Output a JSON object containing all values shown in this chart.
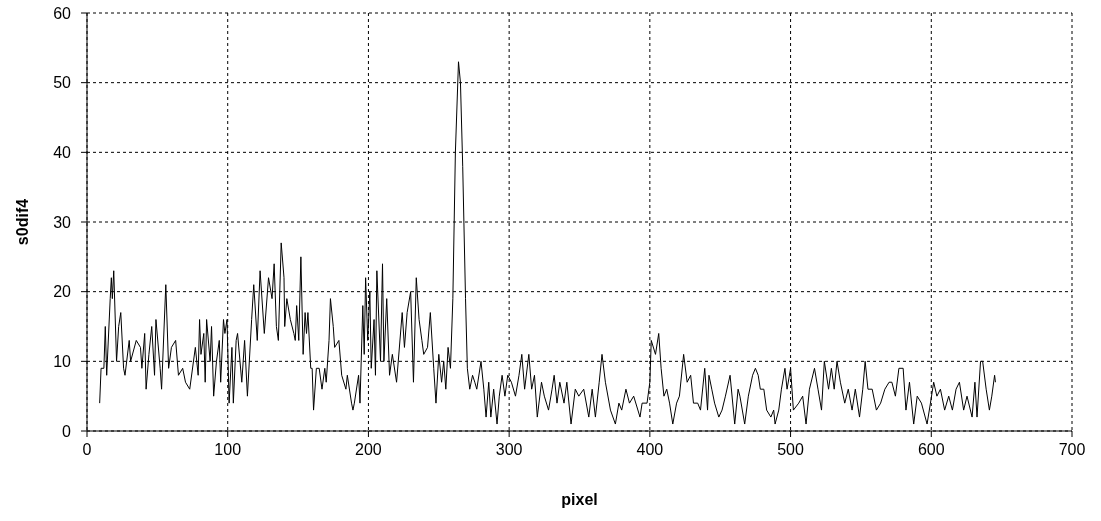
{
  "chart_data": {
    "type": "line",
    "xlabel": "pixel",
    "ylabel": "s0dif4",
    "xlim": [
      0,
      700
    ],
    "xticks": [
      0,
      100,
      200,
      300,
      400,
      500,
      600,
      700
    ],
    "ylim": [
      0,
      60
    ],
    "yticks": [
      0,
      10,
      20,
      30,
      40,
      50,
      60
    ],
    "grid": true,
    "marker": "none",
    "line_style": "solid",
    "series": [
      {
        "color": "#000000",
        "x": [
          9,
          10,
          12,
          13,
          14,
          16.5,
          17.3,
          18,
          19,
          21,
          22.5,
          24,
          26,
          27,
          30,
          31,
          35,
          38,
          39,
          41,
          42,
          44,
          46,
          48,
          49,
          52,
          53,
          56,
          58,
          60,
          63,
          65,
          68,
          70,
          73,
          77,
          79,
          80,
          81,
          83,
          84,
          85,
          87.5,
          88.5,
          90,
          92,
          94,
          95,
          97,
          98,
          99.5,
          101,
          103,
          104,
          106,
          107,
          110,
          112,
          114,
          117,
          118.5,
          121,
          123,
          126,
          129,
          131.5,
          133,
          134.6,
          136,
          138,
          140,
          140.5,
          142,
          144.5,
          147,
          148,
          149,
          150.5,
          152,
          153.6,
          155,
          156,
          157,
          159,
          160,
          161,
          163,
          165,
          167,
          169,
          170,
          172,
          173,
          175,
          176,
          179,
          181,
          184,
          185,
          188,
          189,
          190,
          193,
          194,
          196,
          197,
          198,
          199.5,
          201,
          202,
          204,
          205,
          206,
          208.6,
          210,
          211,
          213,
          215,
          217,
          220,
          224,
          225.6,
          227.5,
          230,
          232,
          234,
          236,
          238,
          239.3,
          242,
          244,
          246.4,
          248,
          250,
          252,
          253.5,
          255,
          256.6,
          258.3,
          260,
          261.8,
          264,
          265.4,
          267,
          269,
          270.3,
          272,
          274,
          275.6,
          277,
          280,
          282,
          283.6,
          285.5,
          287,
          289,
          291.4,
          293,
          295,
          297,
          299,
          301.6,
          304.5,
          307,
          309,
          311,
          314,
          316,
          318,
          320,
          323,
          325,
          328,
          330.5,
          332,
          334,
          336,
          339,
          341,
          344,
          347,
          349.5,
          353,
          356.6,
          359,
          361.3,
          364,
          366,
          368.4,
          372,
          375.5,
          378,
          380,
          383,
          385.5,
          388.5,
          393,
          394.5,
          398,
          400,
          401,
          404,
          406.3,
          408,
          410,
          412,
          414,
          416.3,
          419,
          421,
          424,
          426.5,
          429,
          431,
          434,
          436,
          439,
          441,
          442,
          444,
          446,
          449,
          451.3,
          453.7,
          457,
          460.3,
          462.7,
          464,
          467.4,
          470,
          473,
          475,
          477,
          478.5,
          481,
          483,
          486,
          488,
          489,
          491.6,
          493.5,
          496,
          497.5,
          500,
          502,
          505.8,
          508.6,
          511,
          513.4,
          517,
          519.5,
          522,
          524,
          527,
          529,
          531,
          533,
          535.4,
          538.5,
          541,
          543.7,
          546,
          549,
          551.3,
          553,
          555,
          558,
          561,
          564,
          567,
          570,
          572,
          574.5,
          577,
          580,
          582,
          584.5,
          587.5,
          590,
          593,
          597,
          599.4,
          601.7,
          604,
          606.5,
          609.5,
          612.4,
          615,
          617.6,
          620,
          623,
          625.4,
          629,
          631,
          632.5,
          635,
          636.5,
          639,
          641.3,
          643,
          645,
          645.6
        ],
        "values": [
          4,
          9,
          9,
          15,
          8,
          19,
          22,
          19,
          23,
          10,
          15,
          17,
          9,
          8,
          13,
          10,
          13,
          12,
          9,
          14,
          6,
          11,
          15,
          8,
          16,
          9,
          6,
          21,
          9,
          12,
          13,
          8,
          9,
          7,
          6,
          12,
          8,
          16,
          11,
          14,
          7,
          16,
          10,
          15,
          5,
          10,
          13,
          7,
          16,
          14,
          16,
          4,
          12,
          4,
          13,
          14,
          7,
          13,
          5,
          16,
          21,
          13,
          23,
          14,
          22,
          19,
          24,
          15,
          13,
          27,
          22,
          15,
          19,
          16,
          14,
          13,
          18,
          13,
          25,
          11,
          17,
          14,
          17,
          9,
          9,
          3,
          9,
          9,
          6,
          9,
          7,
          13,
          19,
          15,
          12,
          13,
          8,
          6,
          8,
          4,
          3,
          4,
          8,
          4,
          18,
          11,
          22,
          13,
          20,
          9,
          16,
          8,
          23,
          10,
          24,
          10,
          19,
          8,
          11,
          7,
          17,
          12,
          17,
          20,
          7,
          22,
          16,
          13,
          11,
          12,
          17,
          9,
          4,
          11,
          7,
          10,
          6,
          12,
          9,
          19,
          40,
          53,
          50,
          38,
          19,
          9,
          6,
          8,
          7,
          6,
          10,
          6,
          2,
          7,
          2,
          6,
          1,
          5,
          8,
          5,
          8,
          7,
          5,
          8,
          11,
          6,
          11,
          6,
          8,
          2,
          7,
          5,
          3,
          6,
          8,
          4,
          7,
          4,
          7,
          1,
          6,
          5,
          6,
          2,
          6,
          2,
          7,
          11,
          7,
          3,
          1,
          4,
          3,
          6,
          4,
          5,
          2,
          4,
          4,
          7,
          13,
          11,
          14,
          9,
          5,
          6,
          4,
          1,
          4,
          5,
          11,
          7,
          8,
          4,
          4,
          3,
          9,
          3,
          8,
          6,
          4,
          2,
          3,
          5,
          8,
          1,
          6,
          5,
          1,
          5,
          8,
          9,
          8,
          6,
          6,
          3,
          2,
          3,
          1,
          3,
          6,
          9,
          6,
          9,
          3,
          4,
          5,
          1,
          6,
          9,
          6,
          3,
          10,
          6,
          9,
          6,
          10,
          7,
          4,
          6,
          3,
          6,
          2,
          6,
          10,
          6,
          6,
          3,
          4,
          6,
          7,
          7,
          5,
          9,
          9,
          3,
          7,
          1,
          5,
          4,
          1,
          4,
          7,
          5,
          6,
          3,
          5,
          3,
          6,
          7,
          3,
          5,
          2,
          7,
          2,
          10,
          10,
          6,
          3,
          5,
          8,
          7
        ]
      }
    ]
  }
}
